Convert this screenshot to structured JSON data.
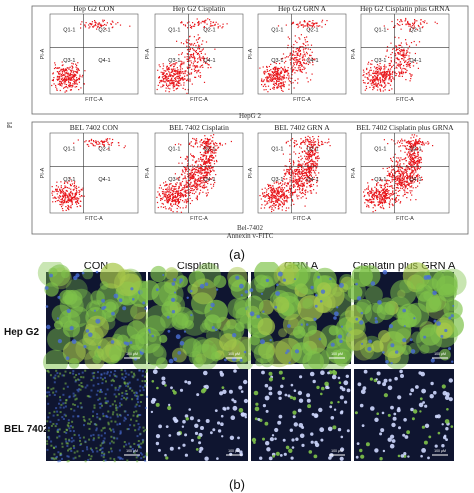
{
  "figure_a": {
    "label": "(a)",
    "y_axis_label": "PI",
    "x_axis_label": "Annexin v-FITC",
    "rows": [
      {
        "cell_line_label": "HepG 2",
        "panel_titles": [
          "Hep G2 CON",
          "Hep G2 Cisplatin",
          "Hep G2 GRN A",
          "Hep G2 Cisplatin plus GRNA"
        ],
        "quadrant_labels": [
          "Q1-1",
          "Q2-1",
          "Q3-1",
          "Q4-1"
        ],
        "panel_x_label": "FITC-A",
        "panel_y_label": "PI-A"
      },
      {
        "cell_line_label": "Bel-7402",
        "panel_titles": [
          "BEL 7402 CON",
          "BEL 7402 Cisplatin",
          "BEL 7402 GRN A",
          "BEL 7402 Cisplatin plus GRNA"
        ],
        "quadrant_labels": [
          "Q1-1",
          "Q2-1",
          "Q3-1",
          "Q4-1"
        ],
        "panel_x_label": "FITC-A",
        "panel_y_label": "PI-A"
      }
    ],
    "colors": {
      "dots": "#e8161b",
      "frame": "#555555"
    }
  },
  "figure_b": {
    "label": "(b)",
    "column_headers": [
      "CON",
      "Cisplatin",
      "GRN A",
      "Cisplatin plus GRN A"
    ],
    "row_labels": [
      "Hep G2",
      "BEL 7402"
    ],
    "scale_label": "100 μM",
    "colors": {
      "background": "#0f1530",
      "green": "#7fc34a",
      "blue": "#4a6fd8"
    }
  }
}
